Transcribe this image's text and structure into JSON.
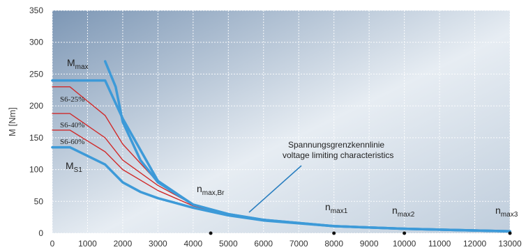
{
  "chart_data": {
    "type": "line",
    "ylabel": "M [Nm]",
    "xlim": [
      0,
      13000
    ],
    "ylim": [
      0,
      350
    ],
    "x_ticks": [
      0,
      1000,
      2000,
      3000,
      4000,
      5000,
      6000,
      7000,
      8000,
      9000,
      10000,
      11000,
      12000,
      13000
    ],
    "y_ticks": [
      0,
      50,
      100,
      150,
      200,
      250,
      300,
      350
    ],
    "grid": true,
    "colors": {
      "thick_curve": "#3d9ad8",
      "s6_curve": "#d02a2a",
      "grid": "#ffffff",
      "bg_dark": "#8aa4c0",
      "bg_light": "#f4f7fa"
    },
    "series": [
      {
        "name": "M max",
        "style": "thick",
        "x": [
          0,
          1500,
          2000,
          3000,
          4000,
          5000,
          6000,
          8000,
          10000,
          13000
        ],
        "y": [
          240,
          240,
          180,
          82,
          45,
          30,
          21,
          11,
          7,
          3
        ]
      },
      {
        "name": "S6-25%",
        "style": "thin",
        "x": [
          0,
          500,
          1500,
          2000,
          3000,
          4000,
          5000,
          6000,
          8000,
          10000,
          13000
        ],
        "y": [
          230,
          230,
          185,
          140,
          80,
          45,
          30,
          21,
          11,
          7,
          3
        ]
      },
      {
        "name": "S6-40%",
        "style": "thin",
        "x": [
          0,
          500,
          1500,
          2000,
          3000,
          4000,
          5000,
          6000,
          8000,
          10000,
          13000
        ],
        "y": [
          188,
          188,
          150,
          115,
          75,
          45,
          30,
          21,
          11,
          7,
          3
        ]
      },
      {
        "name": "S6-60%",
        "style": "thin",
        "x": [
          0,
          500,
          1500,
          2000,
          3000,
          4000,
          5000,
          6000,
          8000,
          10000,
          13000
        ],
        "y": [
          162,
          162,
          128,
          100,
          67,
          43,
          29,
          20,
          11,
          7,
          3
        ]
      },
      {
        "name": "M S1",
        "style": "thick",
        "x": [
          0,
          500,
          1500,
          2000,
          2500,
          3000,
          4000,
          5000,
          6000,
          8000,
          10000,
          13000
        ],
        "y": [
          135,
          135,
          108,
          80,
          65,
          55,
          40,
          28,
          20,
          11,
          7,
          3
        ]
      },
      {
        "name": "Spannungsgrenzkennlinie",
        "style": "thick",
        "x": [
          1500,
          1800,
          2000,
          2500,
          3000,
          4000,
          5000,
          6000,
          8000,
          10000,
          13000
        ],
        "y": [
          270,
          230,
          175,
          115,
          80,
          45,
          30,
          21,
          11,
          7,
          3
        ]
      }
    ],
    "labels": {
      "mmax": "M",
      "mmax_sub": "max",
      "ms1": "M",
      "ms1_sub": "S1",
      "s6_25": "S6-25%",
      "s6_40": "S6-40%",
      "s6_60": "S6-60%",
      "vlc_line1": "Spannungsgrenzkennlinie",
      "vlc_line2": "voltage limiting characteristics",
      "n_br": "n",
      "n_br_sub": "max,Br",
      "n1": "n",
      "n1_sub": "max1",
      "n2": "n",
      "n2_sub": "max2",
      "n3": "n",
      "n3_sub": "max3"
    },
    "markers_x": [
      4500,
      8000,
      10000,
      13000
    ]
  }
}
